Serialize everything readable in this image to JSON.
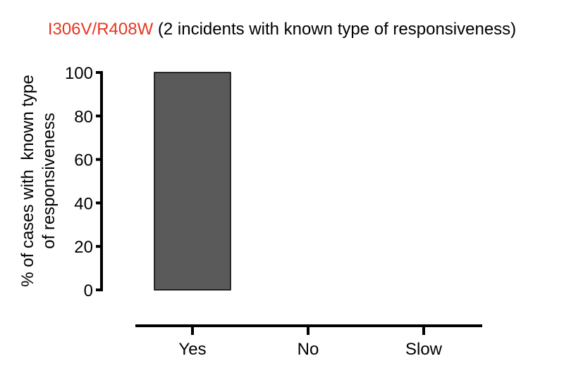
{
  "chart_data": {
    "type": "bar",
    "title_highlight": "I306V/R408W",
    "title": "(2 incidents with known type of responsiveness)",
    "ylabel_lines": [
      "% of cases with  known type",
      "of responsiveness"
    ],
    "xlabel": "",
    "categories": [
      "Yes",
      "No",
      "Slow"
    ],
    "values": [
      100,
      0,
      0
    ],
    "ylim": [
      0,
      100
    ],
    "yticks": [
      0,
      20,
      40,
      60,
      80,
      100
    ],
    "grid": false,
    "legend": "none",
    "colors": {
      "bar": "#5a5a5a",
      "bar_edge": "#000000",
      "axis": "#000000",
      "title_highlight": "#e8361f"
    }
  }
}
